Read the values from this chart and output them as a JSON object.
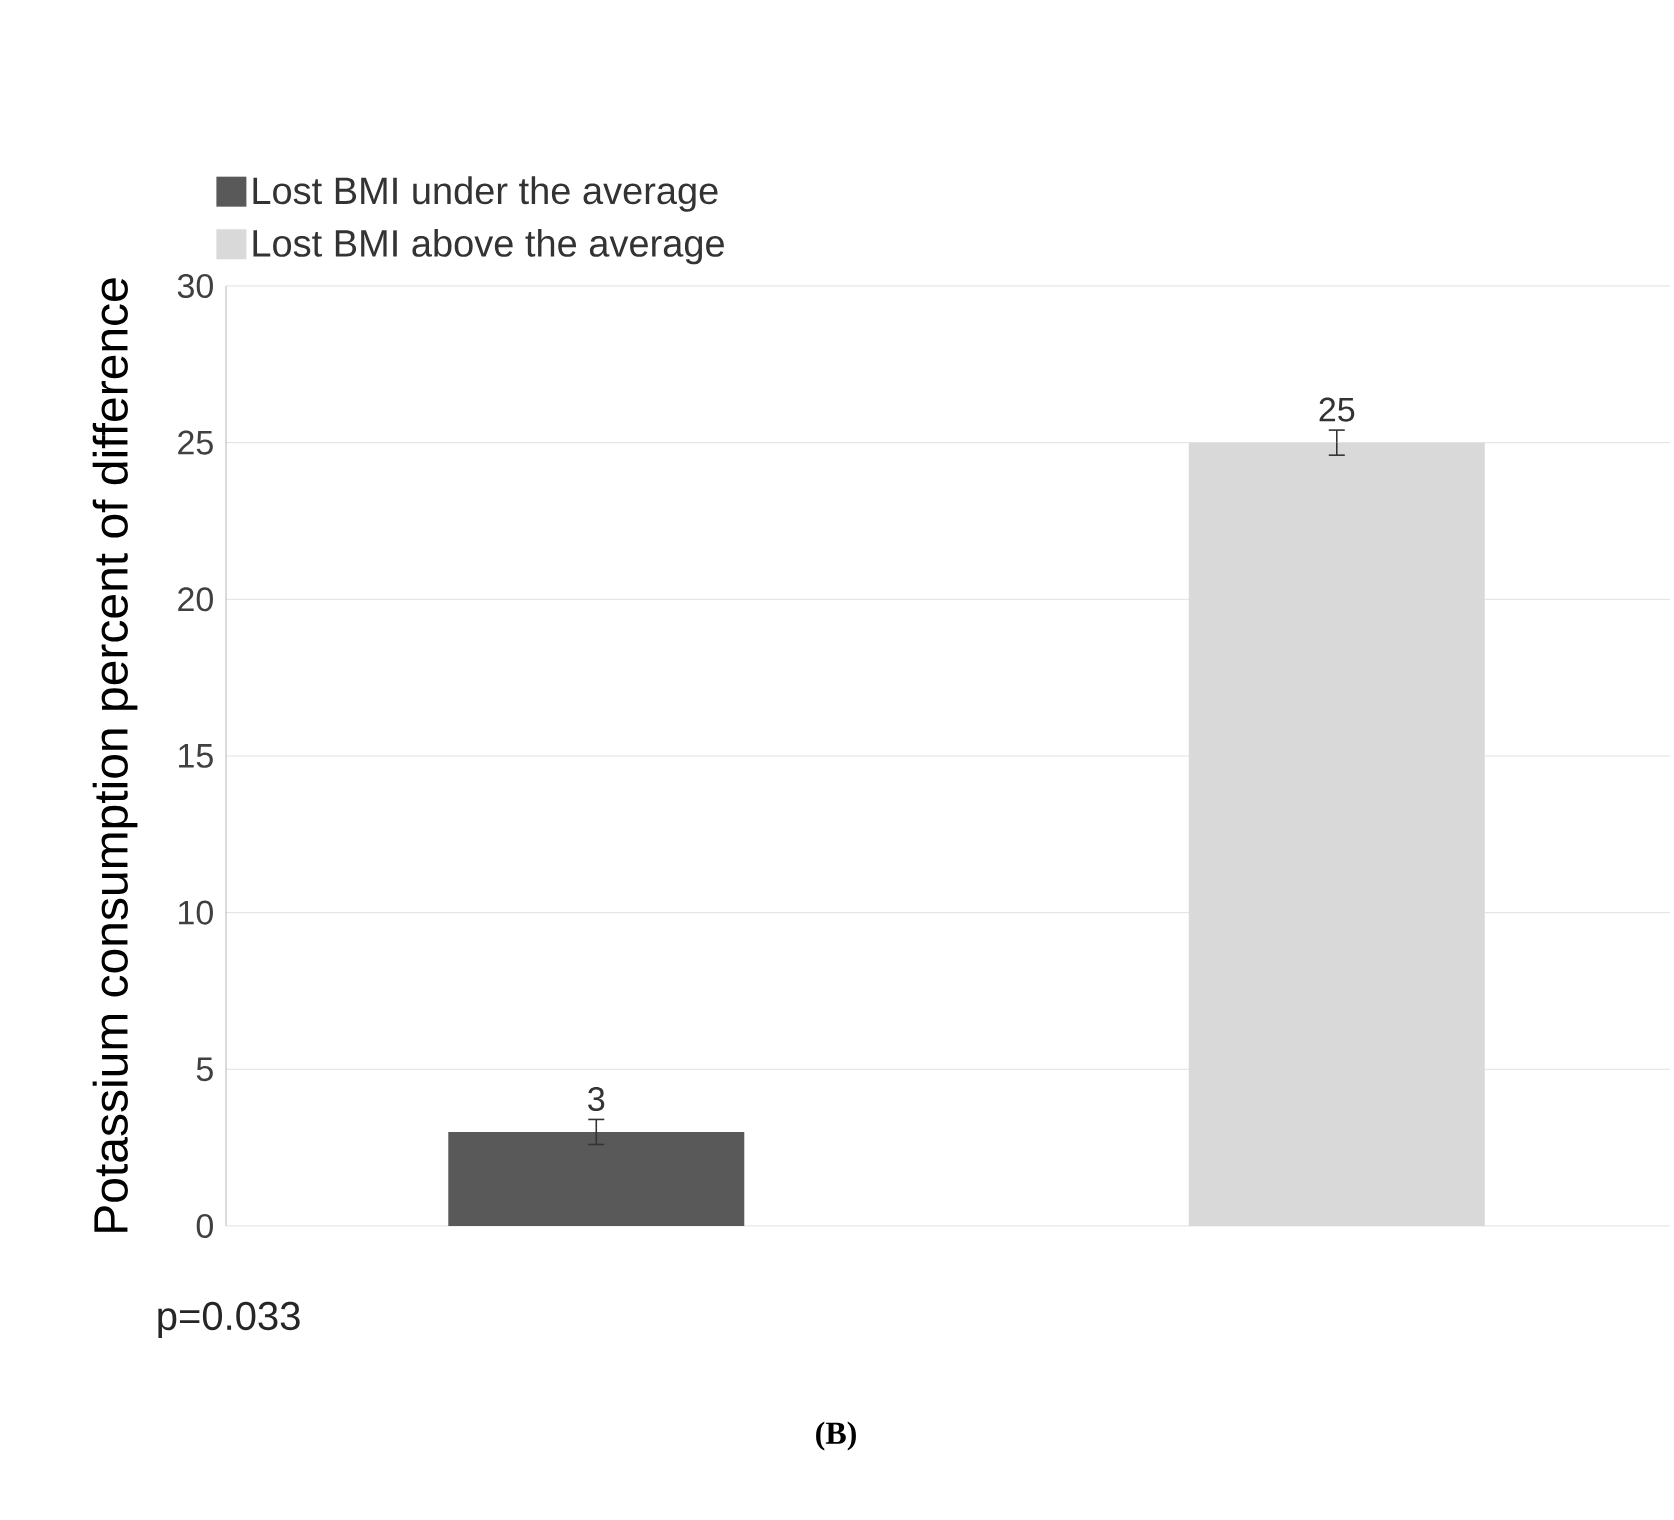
{
  "chart_data": {
    "type": "bar",
    "ylabel": "Potassium consumption percent of difference",
    "categories": [
      null,
      null
    ],
    "series": [
      {
        "name": "Lost BMI under the average",
        "color": "#595959",
        "values": [
          3,
          null
        ],
        "errors": [
          0.4,
          null
        ]
      },
      {
        "name": "Lost BMI above the average",
        "color": "#d9d9d9",
        "values": [
          null,
          25
        ],
        "errors": [
          null,
          0.4
        ]
      }
    ],
    "ylim": [
      0,
      30
    ],
    "yticks": [
      0,
      5,
      10,
      15,
      20,
      25,
      30
    ],
    "grid": "y",
    "legend": "top left",
    "data_labels": true,
    "annotations": [
      "p=0.033",
      "(B)"
    ]
  }
}
